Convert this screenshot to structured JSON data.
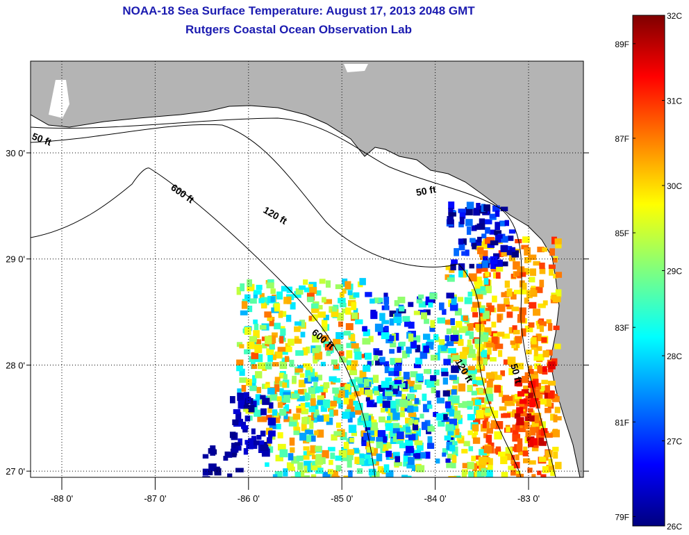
{
  "title": {
    "line1": "NOAA-18 Sea Surface Temperature:  August 17, 2013 2048 GMT",
    "line2": "Rutgers Coastal Ocean Observation Lab"
  },
  "map": {
    "lon_ticks": [
      {
        "value": -88,
        "label": "-88 0'"
      },
      {
        "value": -87,
        "label": "-87 0'"
      },
      {
        "value": -86,
        "label": "-86 0'"
      },
      {
        "value": -85,
        "label": "-85 0'"
      },
      {
        "value": -84,
        "label": "-84 0'"
      },
      {
        "value": -83,
        "label": "-83 0'"
      }
    ],
    "lat_ticks": [
      {
        "value": 30,
        "label": "30 0'"
      },
      {
        "value": 29,
        "label": "29 0'"
      },
      {
        "value": 28,
        "label": "28 0'"
      },
      {
        "value": 27,
        "label": "27 0'"
      }
    ],
    "lon_range": [
      -88.33,
      -82.1
    ],
    "lat_range": [
      26.94,
      30.86
    ],
    "contour_labels": [
      "50 ft",
      "600 ft",
      "120 ft",
      "50 ft",
      "600 ft",
      "120 ft",
      "50 ft"
    ],
    "land_color": "#b4b4b4",
    "ocean_color": "#ffffff"
  },
  "colorbar": {
    "min_c": 26,
    "max_c": 32,
    "celsius_labels": [
      {
        "value": 32,
        "label": "32C"
      },
      {
        "value": 31,
        "label": "31C"
      },
      {
        "value": 30,
        "label": "30C"
      },
      {
        "value": 29,
        "label": "29C"
      },
      {
        "value": 28,
        "label": "28C"
      },
      {
        "value": 27,
        "label": "27C"
      },
      {
        "value": 26,
        "label": "26C"
      }
    ],
    "fahrenheit_labels": [
      {
        "value": 89,
        "label": "89F"
      },
      {
        "value": 87,
        "label": "87F"
      },
      {
        "value": 85,
        "label": "85F"
      },
      {
        "value": 83,
        "label": "83F"
      },
      {
        "value": 81,
        "label": "81F"
      },
      {
        "value": 79,
        "label": "79F"
      }
    ]
  }
}
